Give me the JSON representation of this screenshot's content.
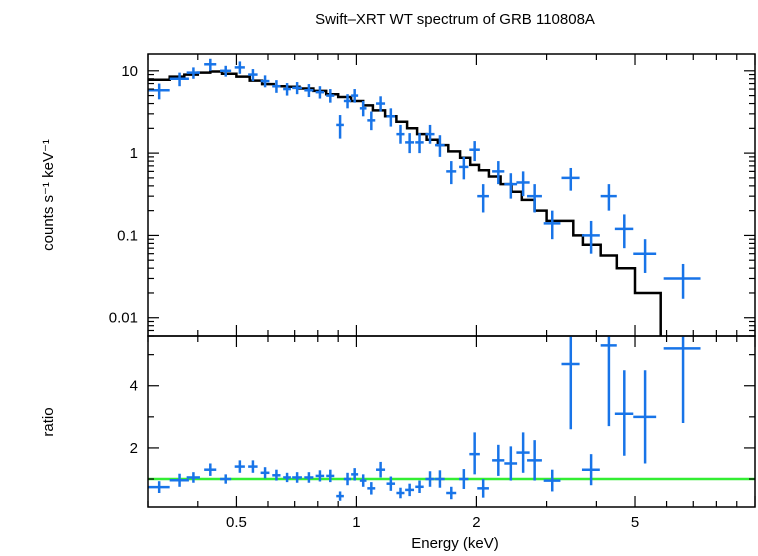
{
  "chart_data": [
    {
      "panel": "spectrum",
      "type": "scatter",
      "title": "Swift–XRT WT spectrum of GRB 110808A",
      "xlabel": "",
      "ylabel": "counts s⁻¹ keV⁻¹",
      "xscale": "log",
      "yscale": "log",
      "xlim": [
        0.3,
        10
      ],
      "ylim": [
        0.006,
        16
      ],
      "yticks": [
        {
          "value": 10,
          "label": "10"
        },
        {
          "value": 1,
          "label": "1"
        },
        {
          "value": 0.1,
          "label": "0.1"
        },
        {
          "value": 0.01,
          "label": "0.01"
        }
      ],
      "grid": false,
      "series": [
        {
          "kind": "data_with_errors",
          "color": "#1874e8",
          "x": [
            0.32,
            0.36,
            0.39,
            0.43,
            0.47,
            0.51,
            0.55,
            0.59,
            0.63,
            0.67,
            0.71,
            0.76,
            0.81,
            0.86,
            0.91,
            0.95,
            0.99,
            1.04,
            1.09,
            1.15,
            1.22,
            1.29,
            1.36,
            1.44,
            1.53,
            1.62,
            1.73,
            1.86,
            1.98,
            2.08,
            2.27,
            2.44,
            2.62,
            2.8,
            3.1,
            3.45,
            3.88,
            4.3,
            4.7,
            5.3,
            6.6
          ],
          "y": [
            5.8,
            8.0,
            9.5,
            12.0,
            10.0,
            11.0,
            9.0,
            7.5,
            6.5,
            6.0,
            6.2,
            5.8,
            5.5,
            5.0,
            2.2,
            4.3,
            5.0,
            3.5,
            2.5,
            4.0,
            2.8,
            1.7,
            1.35,
            1.35,
            1.7,
            1.25,
            0.6,
            0.68,
            1.1,
            0.3,
            0.6,
            0.42,
            0.44,
            0.3,
            0.14,
            0.5,
            0.1,
            0.3,
            0.12,
            0.06,
            0.03
          ],
          "xerr": [
            0.02,
            0.02,
            0.015,
            0.015,
            0.015,
            0.015,
            0.015,
            0.015,
            0.015,
            0.015,
            0.02,
            0.02,
            0.02,
            0.02,
            0.02,
            0.02,
            0.02,
            0.02,
            0.025,
            0.03,
            0.03,
            0.03,
            0.035,
            0.035,
            0.04,
            0.045,
            0.05,
            0.05,
            0.06,
            0.07,
            0.08,
            0.09,
            0.1,
            0.12,
            0.15,
            0.18,
            0.2,
            0.2,
            0.25,
            0.35,
            0.7
          ],
          "ylow": [
            4.5,
            6.5,
            8.0,
            10.0,
            8.5,
            9.2,
            7.5,
            6.3,
            5.4,
            5.0,
            5.2,
            4.8,
            4.6,
            4.1,
            1.5,
            3.5,
            4.1,
            2.8,
            1.9,
            3.2,
            2.1,
            1.3,
            1.0,
            1.0,
            1.3,
            0.9,
            0.42,
            0.48,
            0.8,
            0.19,
            0.42,
            0.28,
            0.3,
            0.19,
            0.09,
            0.35,
            0.06,
            0.2,
            0.07,
            0.035,
            0.017
          ],
          "yhigh": [
            7.0,
            9.5,
            11.0,
            14.0,
            11.5,
            13.0,
            10.5,
            8.8,
            7.7,
            7.1,
            7.3,
            6.9,
            6.5,
            6.0,
            2.9,
            5.2,
            6.0,
            4.3,
            3.2,
            4.9,
            3.5,
            2.2,
            1.75,
            1.75,
            2.2,
            1.65,
            0.8,
            0.9,
            1.4,
            0.42,
            0.8,
            0.57,
            0.6,
            0.42,
            0.2,
            0.66,
            0.15,
            0.42,
            0.18,
            0.09,
            0.045
          ]
        },
        {
          "kind": "model_step",
          "color": "#000000",
          "edges": [
            0.3,
            0.34,
            0.37,
            0.4,
            0.43,
            0.46,
            0.5,
            0.54,
            0.58,
            0.62,
            0.67,
            0.72,
            0.78,
            0.84,
            0.9,
            0.97,
            1.04,
            1.1,
            1.18,
            1.26,
            1.34,
            1.42,
            1.5,
            1.6,
            1.7,
            1.82,
            1.93,
            2.03,
            2.15,
            2.3,
            2.45,
            2.6,
            2.8,
            3.0,
            3.5,
            3.7,
            4.1,
            4.5,
            5.0,
            5.8
          ],
          "values": [
            7.8,
            8.5,
            9.0,
            9.5,
            9.8,
            9.2,
            8.5,
            7.6,
            6.9,
            6.5,
            6.4,
            6.1,
            5.7,
            5.2,
            4.8,
            4.3,
            3.8,
            3.3,
            2.8,
            2.4,
            2.0,
            1.7,
            1.45,
            1.25,
            1.05,
            0.88,
            0.72,
            0.62,
            0.52,
            0.42,
            0.34,
            0.27,
            0.2,
            0.15,
            0.1,
            0.077,
            0.057,
            0.04,
            0.02
          ]
        }
      ]
    },
    {
      "panel": "ratio",
      "type": "scatter",
      "title": "",
      "xlabel": "Energy (keV)",
      "ylabel": "ratio",
      "xscale": "log",
      "yscale": "linear",
      "xlim": [
        0.3,
        10
      ],
      "ylim": [
        0.1,
        5.6
      ],
      "xticks": [
        {
          "value": 0.5,
          "label": "0.5"
        },
        {
          "value": 1,
          "label": "1"
        },
        {
          "value": 2,
          "label": "2"
        },
        {
          "value": 5,
          "label": "5"
        }
      ],
      "yticks": [
        {
          "value": 2,
          "label": "2"
        },
        {
          "value": 4,
          "label": "4"
        }
      ],
      "grid": false,
      "reference_line": {
        "y": 1.0,
        "color": "#33ee33"
      },
      "series": [
        {
          "kind": "data_with_errors",
          "color": "#1874e8",
          "x": [
            0.32,
            0.36,
            0.39,
            0.43,
            0.47,
            0.51,
            0.55,
            0.59,
            0.63,
            0.67,
            0.71,
            0.76,
            0.81,
            0.86,
            0.91,
            0.95,
            0.99,
            1.04,
            1.09,
            1.15,
            1.22,
            1.29,
            1.36,
            1.44,
            1.53,
            1.62,
            1.73,
            1.86,
            1.98,
            2.08,
            2.27,
            2.44,
            2.62,
            2.8,
            3.1,
            3.45,
            3.88,
            4.3,
            4.7,
            5.3,
            6.6
          ],
          "y": [
            0.74,
            0.96,
            1.05,
            1.3,
            1.0,
            1.4,
            1.4,
            1.2,
            1.12,
            1.05,
            1.05,
            1.05,
            1.1,
            1.1,
            0.45,
            1.0,
            1.15,
            0.95,
            0.7,
            1.3,
            0.85,
            0.55,
            0.65,
            0.75,
            1.0,
            1.0,
            0.55,
            1.0,
            1.8,
            0.7,
            1.6,
            1.5,
            1.85,
            1.6,
            0.95,
            4.7,
            1.3,
            5.3,
            3.1,
            3.0,
            5.2
          ],
          "xerr": [
            0.02,
            0.02,
            0.015,
            0.015,
            0.015,
            0.015,
            0.015,
            0.015,
            0.015,
            0.015,
            0.02,
            0.02,
            0.02,
            0.02,
            0.02,
            0.02,
            0.02,
            0.02,
            0.025,
            0.03,
            0.03,
            0.03,
            0.035,
            0.035,
            0.04,
            0.045,
            0.05,
            0.05,
            0.06,
            0.07,
            0.08,
            0.09,
            0.1,
            0.12,
            0.15,
            0.18,
            0.2,
            0.2,
            0.25,
            0.35,
            0.7
          ],
          "ylow": [
            0.55,
            0.75,
            0.88,
            1.1,
            0.85,
            1.2,
            1.2,
            1.02,
            0.95,
            0.9,
            0.88,
            0.88,
            0.92,
            0.9,
            0.3,
            0.8,
            0.95,
            0.75,
            0.5,
            1.05,
            0.62,
            0.38,
            0.45,
            0.55,
            0.75,
            0.72,
            0.35,
            0.68,
            1.15,
            0.4,
            1.1,
            0.95,
            1.2,
            0.95,
            0.6,
            2.6,
            0.8,
            2.7,
            1.75,
            1.5,
            2.8
          ],
          "yhigh": [
            0.93,
            1.17,
            1.22,
            1.5,
            1.15,
            1.6,
            1.6,
            1.38,
            1.3,
            1.2,
            1.22,
            1.22,
            1.28,
            1.3,
            0.6,
            1.2,
            1.35,
            1.15,
            0.9,
            1.55,
            1.08,
            0.72,
            0.85,
            0.95,
            1.25,
            1.28,
            0.75,
            1.32,
            2.5,
            1.0,
            2.1,
            2.05,
            2.5,
            2.25,
            1.3,
            5.6,
            1.8,
            5.6,
            4.5,
            4.5,
            5.6
          ]
        }
      ]
    }
  ]
}
